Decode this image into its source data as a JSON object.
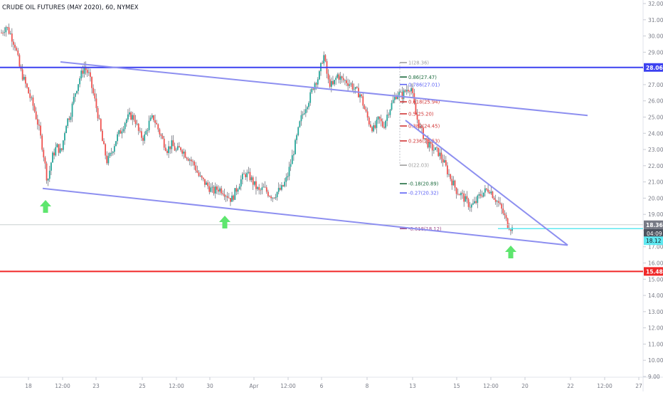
{
  "header": {
    "title": "CRUDE OIL FUTURES (MAY 2020), 60, NYMEX"
  },
  "chart_data": {
    "type": "candlestick",
    "title": "CRUDE OIL FUTURES (MAY 2020), 60, NYMEX",
    "ylim": [
      9.0,
      32.0
    ],
    "y_ticks": [
      "32.00",
      "31.00",
      "30.00",
      "29.00",
      "28.00",
      "27.00",
      "26.00",
      "25.00",
      "24.00",
      "23.00",
      "22.00",
      "21.00",
      "20.00",
      "19.00",
      "18.00",
      "17.00",
      "16.00",
      "15.00",
      "14.00",
      "13.00",
      "12.00",
      "11.00",
      "10.00",
      "9.00"
    ],
    "x_ticks": [
      "18",
      "12:00",
      "23",
      "25",
      "12:00",
      "30",
      "Apr",
      "12:00",
      "6",
      "8",
      "13",
      "15",
      "12:00",
      "20",
      "22",
      "12:00",
      "27"
    ],
    "price_path": [
      30.2,
      30.6,
      30.1,
      29.4,
      28.0,
      27.2,
      26.4,
      25.6,
      24.5,
      23.0,
      21.0,
      22.5,
      23.2,
      22.8,
      24.6,
      25.2,
      26.5,
      27.4,
      28.1,
      27.6,
      26.4,
      25.1,
      23.4,
      22.2,
      22.9,
      23.7,
      24.2,
      24.8,
      25.1,
      24.9,
      23.9,
      23.7,
      24.6,
      25.0,
      24.3,
      23.6,
      23.0,
      23.3,
      22.9,
      23.1,
      22.7,
      22.4,
      22.0,
      21.3,
      21.0,
      20.7,
      20.4,
      20.6,
      20.5,
      20.2,
      19.9,
      20.5,
      21.1,
      21.5,
      21.3,
      20.8,
      20.4,
      20.6,
      20.3,
      20.1,
      20.4,
      20.6,
      21.2,
      22.3,
      23.5,
      24.8,
      25.6,
      26.2,
      27.1,
      27.5,
      28.9,
      27.2,
      26.9,
      27.6,
      27.3,
      27.2,
      27.0,
      26.6,
      26.4,
      25.4,
      24.6,
      24.2,
      24.9,
      24.4,
      25.3,
      25.9,
      26.5,
      26.3,
      26.7,
      26.9,
      25.2,
      24.3,
      23.7,
      23.2,
      23.0,
      22.8,
      22.3,
      21.6,
      21.0,
      20.4,
      20.2,
      19.8,
      19.5,
      19.7,
      20.2,
      20.4,
      20.6,
      20.1,
      19.7,
      19.1,
      18.4,
      18.1
    ],
    "price_bands": {
      "start_x": 2,
      "end_x": 720
    },
    "horizontal_lines": [
      {
        "label": "28.06",
        "value": 28.06,
        "color": "#3c41f0"
      },
      {
        "label": "15.48",
        "value": 15.48,
        "color": "#f02828"
      },
      {
        "label": "18.36",
        "value": 18.36,
        "color": "#c9d0cf"
      }
    ],
    "current_price": {
      "label": "18.36",
      "time": "04:09",
      "next": "18.12",
      "value": 18.36
    },
    "cyan_level": {
      "value": 18.12,
      "color": "#5fe8f0"
    },
    "fib_levels": [
      {
        "label": "1(28.36)",
        "value": 28.36,
        "color": "#9e9e9e"
      },
      {
        "label": "0.86(27.47)",
        "value": 27.47,
        "color": "#1c6b3e"
      },
      {
        "label": "0.786(27.01)",
        "value": 27.01,
        "color": "#5e63f5"
      },
      {
        "label": "0.618(25.94)",
        "value": 25.94,
        "color": "#d13636"
      },
      {
        "label": "0.5(25.20)",
        "value": 25.2,
        "color": "#d13636"
      },
      {
        "label": "0.382(24.45)",
        "value": 24.45,
        "color": "#d13636"
      },
      {
        "label": "0.236(23.53)",
        "value": 23.53,
        "color": "#d13636"
      },
      {
        "label": "0(22.03)",
        "value": 22.03,
        "color": "#9e9e9e"
      },
      {
        "label": "-0.18(20.89)",
        "value": 20.89,
        "color": "#1c6b3e"
      },
      {
        "label": "-0.27(20.32)",
        "value": 20.32,
        "color": "#5e63f5"
      },
      {
        "label": "-0.618(18.12)",
        "value": 18.12,
        "color": "#9c4a8a"
      }
    ],
    "trendlines": [
      {
        "name": "upper-channel",
        "from": [
          28.4,
          "t0"
        ],
        "to": [
          25.1,
          "t1"
        ]
      },
      {
        "name": "lower-channel",
        "from": [
          20.6,
          "t0"
        ],
        "to": [
          17.1,
          "t1"
        ]
      }
    ],
    "arrows": [
      "up-arrow",
      "up-arrow",
      "up-arrow"
    ],
    "colors": {
      "up": "#26a69a",
      "down": "#ef5350",
      "wick": "#5d606b",
      "channel": "#8d8ff0",
      "arrow": "#5ee66e"
    }
  }
}
